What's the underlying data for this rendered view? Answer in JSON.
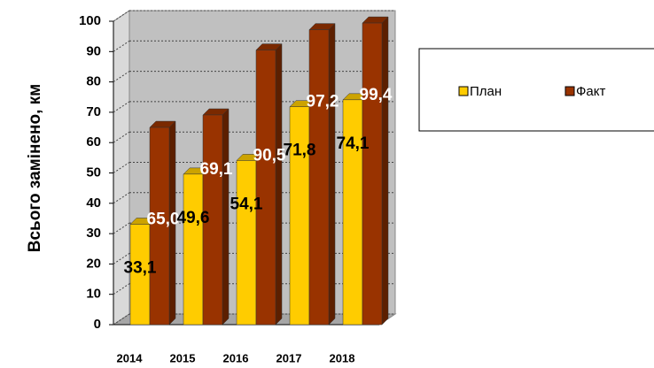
{
  "chart_data": {
    "type": "bar3d",
    "ylabel": "Всього замінено, км",
    "categories": [
      "2014",
      "2015",
      "2016",
      "2017",
      "2018"
    ],
    "series": [
      {
        "name": "План",
        "color": "#ffcc00",
        "values": [
          33.1,
          49.6,
          54.1,
          71.8,
          74.1
        ],
        "value_labels": [
          "33,1",
          "49,6",
          "54,1",
          "71,8",
          "74,1"
        ],
        "label_color": "#000000"
      },
      {
        "name": "Факт",
        "color": "#993300",
        "values": [
          65.0,
          69.1,
          90.5,
          97.2,
          99.4
        ],
        "value_labels": [
          "65,0",
          "69,1",
          "90,5",
          "97,2",
          "99,4"
        ],
        "label_color": "#ffffff"
      }
    ],
    "ylim": [
      0,
      100
    ],
    "yticks": [
      0,
      10,
      20,
      30,
      40,
      50,
      60,
      70,
      80,
      90,
      100
    ],
    "grid": true,
    "legend": "right"
  }
}
